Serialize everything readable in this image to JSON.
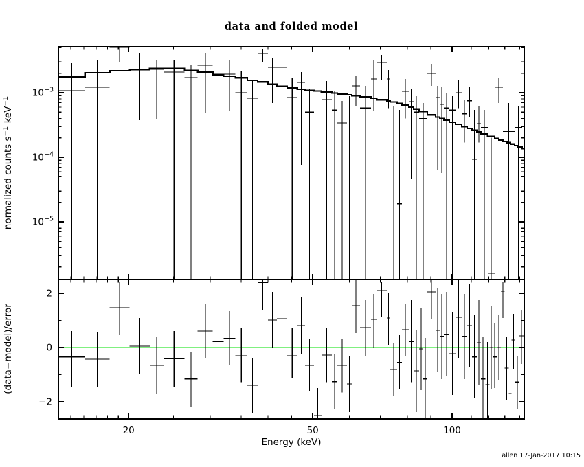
{
  "title": "data and folded model",
  "x_label": "Energy (keV)",
  "y_label": "normalized counts s⁻¹ keV⁻¹",
  "y_label_parts": [
    {
      "t": "normalized counts s"
    },
    {
      "t": "−1",
      "sup": true
    },
    {
      "t": " keV"
    },
    {
      "t": "−1",
      "sup": true
    }
  ],
  "y2_label": "(data−model)/error",
  "timestamp": "allen 17-Jan-2017 10:15",
  "colors": {
    "foreground": "#000000",
    "background": "#ffffff",
    "zero_line": "#00e000"
  },
  "chart_data": {
    "type": "scatter",
    "title": "data and folded model",
    "xlabel": "Energy (keV)",
    "legend": "none",
    "grid": false,
    "x": {
      "scale": "log",
      "lim": [
        14.1,
        143.2
      ],
      "major_ticks": [
        20,
        50,
        100
      ],
      "major_tick_labels": [
        "20",
        "50",
        "100"
      ],
      "minor_ticks": [
        15,
        16,
        17,
        18,
        19,
        25,
        30,
        35,
        40,
        45,
        60,
        70,
        80,
        90,
        110,
        120,
        130,
        140
      ]
    },
    "panels": [
      {
        "name": "spectrum",
        "ylabel": "normalized counts s⁻¹ keV⁻¹",
        "yscale": "log",
        "ylim": [
          1.28e-06,
          0.00516
        ],
        "y_major_ticks": [
          {
            "v": 0.001,
            "base": "10",
            "exp": "−3"
          },
          {
            "v": 0.0001,
            "base": "10",
            "exp": "−4"
          },
          {
            "v": 1e-05,
            "base": "10",
            "exp": "−5"
          }
        ],
        "points": [
          {
            "e0": 14.1,
            "e1": 16.1,
            "f": 0.00108,
            "fl": null,
            "fh": 0.00287
          },
          {
            "e0": 16.1,
            "e1": 18.2,
            "f": 0.00122,
            "fl": null,
            "fh": 0.00316
          },
          {
            "e0": 18.2,
            "e1": 20.1,
            "f": 0.00504,
            "fl": 0.00301,
            "fh": null
          },
          {
            "e0": 20.1,
            "e1": 22.2,
            "f": 0.00224,
            "fl": 0.000375,
            "fh": 0.00414
          },
          {
            "e0": 22.2,
            "e1": 23.8,
            "f": 0.0023,
            "fl": 0.000394,
            "fh": 0.00324
          },
          {
            "e0": 23.8,
            "e1": 26.4,
            "f": 0.00208,
            "fl": null,
            "fh": 0.00316
          },
          {
            "e0": 26.4,
            "e1": 28.2,
            "f": 0.00171,
            "fl": null,
            "fh": 0.00266
          },
          {
            "e0": 28.2,
            "e1": 30.4,
            "f": 0.00266,
            "fl": 0.00048,
            "fh": 0.00414
          },
          {
            "e0": 30.4,
            "e1": 32.1,
            "f": 0.00194,
            "fl": 0.00048,
            "fh": 0.00324
          },
          {
            "e0": 32.1,
            "e1": 34.0,
            "f": 0.00194,
            "fl": 0.00052,
            "fh": 0.00324
          },
          {
            "e0": 34.0,
            "e1": 36.1,
            "f": 0.001,
            "fl": null,
            "fh": 0.00219
          },
          {
            "e0": 36.1,
            "e1": 38.0,
            "f": 0.00082,
            "fl": null,
            "fh": 0.00152
          },
          {
            "e0": 38.0,
            "e1": 40.0,
            "f": 0.00404,
            "fl": 0.00301,
            "fh": 0.00468
          },
          {
            "e0": 40.0,
            "e1": 41.8,
            "f": 0.00248,
            "fl": 0.00069,
            "fh": 0.0034
          },
          {
            "e0": 41.8,
            "e1": 44.0,
            "f": 0.00248,
            "fl": 0.00069,
            "fh": 0.0034
          },
          {
            "e0": 44.0,
            "e1": 46.3,
            "f": 0.00084,
            "fl": null,
            "fh": 0.00171
          },
          {
            "e0": 46.3,
            "e1": 48.1,
            "f": 0.00144,
            "fl": 7.6e-05,
            "fh": 0.00208
          },
          {
            "e0": 48.1,
            "e1": 50.3,
            "f": 0.0005,
            "fl": null,
            "fh": 0.00113
          },
          {
            "e0": 52.2,
            "e1": 55.0,
            "f": 0.00078,
            "fl": null,
            "fh": 0.00152
          },
          {
            "e0": 55.0,
            "e1": 56.5,
            "f": 0.00054,
            "fl": null,
            "fh": 0.00108
          },
          {
            "e0": 56.5,
            "e1": 59.3,
            "f": 0.00034,
            "fl": null,
            "fh": 0.00075
          },
          {
            "e0": 59.3,
            "e1": 60.7,
            "f": 0.00042,
            "fl": null,
            "fh": 0.00089
          },
          {
            "e0": 60.7,
            "e1": 63.3,
            "f": 0.00128,
            "fl": 0.00061,
            "fh": 0.00185
          },
          {
            "e0": 63.3,
            "e1": 66.8,
            "f": 0.00058,
            "fl": null,
            "fh": 0.00128
          },
          {
            "e0": 66.8,
            "e1": 68.7,
            "f": 0.00163,
            "fl": 0.00052,
            "fh": 0.00324
          },
          {
            "e0": 68.7,
            "e1": 72.3,
            "f": 0.00294,
            "fl": 0.00155,
            "fh": 0.00385
          },
          {
            "e0": 72.3,
            "e1": 73.5,
            "f": 0.00163,
            "fl": 0.00058,
            "fh": 0.00224
          },
          {
            "e0": 73.5,
            "e1": 76.1,
            "f": 4.3e-05,
            "fl": null,
            "fh": 0.00061
          },
          {
            "e0": 76.1,
            "e1": 77.9,
            "f": 1.9e-05,
            "fl": null,
            "fh": 0.00054
          },
          {
            "e0": 77.9,
            "e1": 80.6,
            "f": 0.00105,
            "fl": 0.0004,
            "fh": 0.00163
          },
          {
            "e0": 80.6,
            "e1": 82.6,
            "f": 0.00073,
            "fl": 4.7e-05,
            "fh": 0.00113
          },
          {
            "e0": 82.6,
            "e1": 84.9,
            "f": 0.0005,
            "fl": null,
            "fh": 0.00089
          },
          {
            "e0": 84.9,
            "e1": 88.4,
            "f": 0.0004,
            "fl": null,
            "fh": 0.00069
          },
          {
            "e0": 88.4,
            "e1": 92.1,
            "f": 0.00199,
            "fl": 0.00128,
            "fh": 0.0028
          },
          {
            "e0": 92.1,
            "e1": 94.0,
            "f": 0.00084,
            "fl": 6.4e-05,
            "fh": 0.00128
          },
          {
            "e0": 94.0,
            "e1": 96.0,
            "f": 0.00066,
            "fl": 5.7e-05,
            "fh": 0.00122
          },
          {
            "e0": 96.0,
            "e1": 98.6,
            "f": 0.00058,
            "fl": null,
            "fh": 0.001
          },
          {
            "e0": 98.6,
            "e1": 101.7,
            "f": 0.00054,
            "fl": null,
            "fh": 0.00089
          },
          {
            "e0": 101.7,
            "e1": 104.9,
            "f": 0.001,
            "fl": 0.00058,
            "fh": 0.00155
          },
          {
            "e0": 104.9,
            "e1": 107.8,
            "f": 0.00047,
            "fl": 0.00017,
            "fh": 0.00078
          },
          {
            "e0": 107.8,
            "e1": 110.4,
            "f": 0.00075,
            "fl": 0.00042,
            "fh": 0.00122
          },
          {
            "e0": 110.4,
            "e1": 113.1,
            "f": 9.3e-05,
            "fl": null,
            "fh": 0.00054
          },
          {
            "e0": 113.1,
            "e1": 115.4,
            "f": 0.00033,
            "fl": 0.00017,
            "fh": 0.00061
          },
          {
            "e0": 115.4,
            "e1": 119.4,
            "f": 0.00029,
            "fl": null,
            "fh": 0.00054
          },
          {
            "e0": 119.4,
            "e1": 123.6,
            "f": 1.6e-06,
            "fl": null,
            "fh": 0.0002
          },
          {
            "e0": 123.6,
            "e1": 128.8,
            "f": 0.00122,
            "fl": 0.00069,
            "fh": 0.00171
          },
          {
            "e0": 128.8,
            "e1": 136.5,
            "f": 0.00025,
            "fl": null,
            "fh": 0.00069
          },
          {
            "e0": 136.5,
            "e1": 141.7,
            "f": 0.00029,
            "fl": null,
            "fh": 0.00061
          }
        ],
        "model": {
          "bin_edges": [
            14.1,
            16.1,
            18.2,
            20.1,
            22.2,
            23.8,
            26.4,
            28.2,
            30.4,
            32.1,
            34.0,
            36.1,
            38.0,
            40.0,
            41.8,
            44.0,
            46.3,
            48.1,
            50.3,
            52.2,
            55.0,
            56.5,
            59.3,
            60.7,
            63.3,
            66.8,
            68.7,
            72.3,
            73.5,
            76.1,
            77.9,
            80.6,
            82.6,
            84.9,
            88.4,
            92.1,
            94.0,
            96.0,
            98.6,
            101.7,
            104.9,
            107.8,
            110.4,
            113.1,
            115.4,
            119.4,
            123.6,
            126.2,
            128.8,
            131.5,
            133.7,
            136.5,
            138.8,
            141.7,
            143.2
          ],
          "values": [
            0.00176,
            0.00203,
            0.00219,
            0.0023,
            0.00239,
            0.00237,
            0.0022,
            0.0021,
            0.0019,
            0.0018,
            0.0017,
            0.00155,
            0.00147,
            0.00135,
            0.00126,
            0.00118,
            0.00113,
            0.00109,
            0.00106,
            0.00102,
            0.00099,
            0.00096,
            0.00093,
            0.0009,
            0.00086,
            0.00082,
            0.00078,
            0.00075,
            0.00072,
            0.00068,
            0.00064,
            0.0006,
            0.00056,
            0.00051,
            0.000455,
            0.00042,
            0.0004,
            0.000375,
            0.00035,
            0.000325,
            0.0003,
            0.00028,
            0.000262,
            0.000247,
            0.00023,
            0.00021,
            0.000196,
            0.000186,
            0.000176,
            0.000168,
            0.00016,
            0.000152,
            0.000144,
            0.000136
          ]
        }
      },
      {
        "name": "residuals",
        "ylabel": "(data−model)/error",
        "yscale": "linear",
        "ylim": [
          -2.633,
          2.506
        ],
        "y_major_ticks": [
          {
            "v": 2,
            "label": "2"
          },
          {
            "v": 0,
            "label": "0"
          },
          {
            "v": -2,
            "label": "−2"
          }
        ],
        "y_minor_ticks": [
          1,
          -1
        ],
        "zero_line": true,
        "points": [
          {
            "e0": 14.1,
            "e1": 16.1,
            "v": -0.35,
            "vl": -1.44,
            "vh": 0.61
          },
          {
            "e0": 16.1,
            "e1": 18.2,
            "v": -0.43,
            "vl": -1.44,
            "vh": 0.58
          },
          {
            "e0": 18.2,
            "e1": 20.1,
            "v": 1.47,
            "vl": 0.46,
            "vh": 2.43
          },
          {
            "e0": 20.1,
            "e1": 22.2,
            "v": 0.05,
            "vl": -0.99,
            "vh": 1.09
          },
          {
            "e0": 22.2,
            "e1": 23.8,
            "v": -0.66,
            "vl": -1.7,
            "vh": 0.41
          },
          {
            "e0": 23.8,
            "e1": 26.4,
            "v": -0.41,
            "vl": -1.44,
            "vh": 0.61
          },
          {
            "e0": 26.4,
            "e1": 28.2,
            "v": -1.16,
            "vl": -2.18,
            "vh": -0.15
          },
          {
            "e0": 28.2,
            "e1": 30.4,
            "v": 0.61,
            "vl": -0.4,
            "vh": 1.62
          },
          {
            "e0": 30.4,
            "e1": 32.1,
            "v": 0.22,
            "vl": -0.78,
            "vh": 1.25
          },
          {
            "e0": 32.1,
            "e1": 34.0,
            "v": 0.34,
            "vl": -0.65,
            "vh": 1.34
          },
          {
            "e0": 34.0,
            "e1": 36.1,
            "v": -0.31,
            "vl": -1.28,
            "vh": 0.72
          },
          {
            "e0": 36.1,
            "e1": 38.0,
            "v": -1.39,
            "vl": -2.42,
            "vh": -0.41
          },
          {
            "e0": 38.0,
            "e1": 40.0,
            "v": 2.39,
            "vl": 1.38,
            "vh": null
          },
          {
            "e0": 40.0,
            "e1": 41.8,
            "v": 1.01,
            "vl": -0.02,
            "vh": 2.05
          },
          {
            "e0": 41.8,
            "e1": 44.0,
            "v": 1.06,
            "vl": 0.0,
            "vh": 2.08
          },
          {
            "e0": 44.0,
            "e1": 46.3,
            "v": -0.31,
            "vl": -1.11,
            "vh": 0.71
          },
          {
            "e0": 46.3,
            "e1": 48.1,
            "v": 0.81,
            "vl": -0.23,
            "vh": 1.85
          },
          {
            "e0": 48.1,
            "e1": 50.3,
            "v": -0.65,
            "vl": -1.62,
            "vh": 0.33
          },
          {
            "e0": 50.3,
            "e1": 52.2,
            "v": -2.51,
            "vl": null,
            "vh": -1.49
          },
          {
            "e0": 52.2,
            "e1": 55.0,
            "v": -0.28,
            "vl": -1.28,
            "vh": 0.73
          },
          {
            "e0": 55.0,
            "e1": 56.5,
            "v": -1.26,
            "vl": -2.25,
            "vh": -0.23
          },
          {
            "e0": 56.5,
            "e1": 59.3,
            "v": -0.66,
            "vl": -1.66,
            "vh": 0.33
          },
          {
            "e0": 59.3,
            "e1": 60.7,
            "v": -1.34,
            "vl": -2.38,
            "vh": -0.3
          },
          {
            "e0": 60.7,
            "e1": 63.3,
            "v": 1.54,
            "vl": 0.53,
            "vh": null
          },
          {
            "e0": 63.3,
            "e1": 66.8,
            "v": 0.73,
            "vl": -0.3,
            "vh": 1.75
          },
          {
            "e0": 66.8,
            "e1": 68.7,
            "v": 1.04,
            "vl": -0.03,
            "vh": 1.97
          },
          {
            "e0": 68.7,
            "e1": 72.3,
            "v": 2.1,
            "vl": 1.11,
            "vh": 2.43
          },
          {
            "e0": 72.3,
            "e1": 73.5,
            "v": 1.09,
            "vl": 0.08,
            "vh": 2.0
          },
          {
            "e0": 73.5,
            "e1": 76.1,
            "v": -0.81,
            "vl": -1.8,
            "vh": 0.15
          },
          {
            "e0": 76.1,
            "e1": 77.9,
            "v": -0.55,
            "vl": -1.55,
            "vh": 0.45
          },
          {
            "e0": 77.9,
            "e1": 80.6,
            "v": 0.66,
            "vl": -0.3,
            "vh": 1.62
          },
          {
            "e0": 80.6,
            "e1": 82.6,
            "v": 0.22,
            "vl": -1.28,
            "vh": 1.75
          },
          {
            "e0": 82.6,
            "e1": 84.9,
            "v": -0.86,
            "vl": -2.38,
            "vh": 0.66
          },
          {
            "e0": 84.9,
            "e1": 86.6,
            "v": -0.05,
            "vl": -1.57,
            "vh": 1.47
          },
          {
            "e0": 86.6,
            "e1": 88.4,
            "v": -1.16,
            "vl": null,
            "vh": 0.35
          },
          {
            "e0": 88.4,
            "e1": 92.1,
            "v": 2.05,
            "vl": 1.04,
            "vh": null
          },
          {
            "e0": 92.1,
            "e1": 94.0,
            "v": 0.63,
            "vl": -0.91,
            "vh": 2.18
          },
          {
            "e0": 94.0,
            "e1": 96.0,
            "v": 0.41,
            "vl": -1.16,
            "vh": 1.97
          },
          {
            "e0": 96.0,
            "e1": 98.6,
            "v": 0.47,
            "vl": -1.06,
            "vh": 2.05
          },
          {
            "e0": 98.6,
            "e1": 101.7,
            "v": -0.23,
            "vl": -1.75,
            "vh": 1.29
          },
          {
            "e0": 101.7,
            "e1": 104.9,
            "v": 1.12,
            "vl": -0.41,
            "vh": null
          },
          {
            "e0": 104.9,
            "e1": 107.8,
            "v": 0.41,
            "vl": -1.16,
            "vh": 1.97
          },
          {
            "e0": 107.8,
            "e1": 110.4,
            "v": 0.81,
            "vl": -0.73,
            "vh": 2.35
          },
          {
            "e0": 110.4,
            "e1": 113.1,
            "v": -0.35,
            "vl": -1.87,
            "vh": 1.22
          },
          {
            "e0": 113.1,
            "e1": 115.4,
            "v": 0.17,
            "vl": -1.37,
            "vh": 1.75
          },
          {
            "e0": 115.4,
            "e1": 118.0,
            "v": -1.16,
            "vl": null,
            "vh": 0.41
          },
          {
            "e0": 118.0,
            "e1": 120.5,
            "v": -1.37,
            "vl": null,
            "vh": 0.2
          },
          {
            "e0": 120.5,
            "e1": 122.5,
            "v": 0.0,
            "vl": -1.54,
            "vh": 1.54
          },
          {
            "e0": 122.5,
            "e1": 125.0,
            "v": -0.35,
            "vl": -1.5,
            "vh": 0.9
          },
          {
            "e0": 125.0,
            "e1": 127.5,
            "v": 0.0,
            "vl": -1.2,
            "vh": 1.2
          },
          {
            "e0": 127.5,
            "e1": 130.0,
            "v": 2.08,
            "vl": 1.09,
            "vh": 2.43
          },
          {
            "e0": 130.0,
            "e1": 132.5,
            "v": -0.76,
            "vl": -1.92,
            "vh": 0.41
          },
          {
            "e0": 132.5,
            "e1": 134.5,
            "v": -1.7,
            "vl": null,
            "vh": -0.66
          },
          {
            "e0": 134.5,
            "e1": 137.0,
            "v": 0.28,
            "vl": -0.78,
            "vh": 1.24
          },
          {
            "e0": 137.0,
            "e1": 139.5,
            "v": -1.27,
            "vl": -2.25,
            "vh": -0.3
          },
          {
            "e0": 139.5,
            "e1": 143.1,
            "v": 0.43,
            "vl": -0.61,
            "vh": 1.37
          }
        ]
      }
    ]
  }
}
